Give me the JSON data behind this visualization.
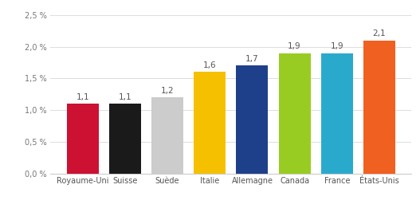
{
  "categories": [
    "Royaume-Uni",
    "Suisse",
    "Suède",
    "Italie",
    "Allemagne",
    "Canada",
    "France",
    "États-Unis"
  ],
  "values": [
    1.1,
    1.1,
    1.2,
    1.6,
    1.7,
    1.9,
    1.9,
    2.1
  ],
  "bar_colors": [
    "#cc1133",
    "#1a1a1a",
    "#cccccc",
    "#f5c000",
    "#1e3f8a",
    "#99cc22",
    "#29aacc",
    "#f06020"
  ],
  "ylim": [
    0,
    2.5
  ],
  "yticks": [
    0.0,
    0.5,
    1.0,
    1.5,
    2.0,
    2.5
  ],
  "ytick_labels": [
    "0,0 %",
    "0,5 %",
    "1,0 %",
    "1,5 %",
    "2,0 %",
    "2,5 %"
  ],
  "value_labels": [
    "1,1",
    "1,1",
    "1,2",
    "1,6",
    "1,7",
    "1,9",
    "1,9",
    "2,1"
  ],
  "bar_width": 0.75,
  "background_color": "#ffffff",
  "label_fontsize": 7.5,
  "tick_fontsize": 7.0,
  "grid_color": "#dddddd",
  "label_color": "#555555",
  "figsize": [
    5.27,
    2.66
  ],
  "dpi": 100
}
